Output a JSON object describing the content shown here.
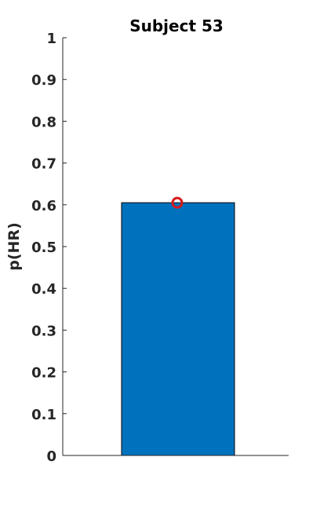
{
  "chart_data": {
    "type": "bar",
    "title": "Subject 53",
    "xlabel": "",
    "ylabel": "p(HR)",
    "ylim": [
      0,
      1
    ],
    "yticks": [
      0,
      0.1,
      0.2,
      0.3,
      0.4,
      0.5,
      0.6,
      0.7,
      0.8,
      0.9,
      1
    ],
    "ytick_labels": [
      "0",
      "0.1",
      "0.2",
      "0.3",
      "0.4",
      "0.5",
      "0.6",
      "0.7",
      "0.8",
      "0.9",
      "1"
    ],
    "categories": [
      ""
    ],
    "values": [
      0.605
    ],
    "marker_values": [
      0.605
    ],
    "grid": false,
    "legend": "none",
    "colors": {
      "bar": "#0072BD",
      "bar_edge": "#000000",
      "marker": "#D7191C",
      "axis": "#262626"
    }
  }
}
